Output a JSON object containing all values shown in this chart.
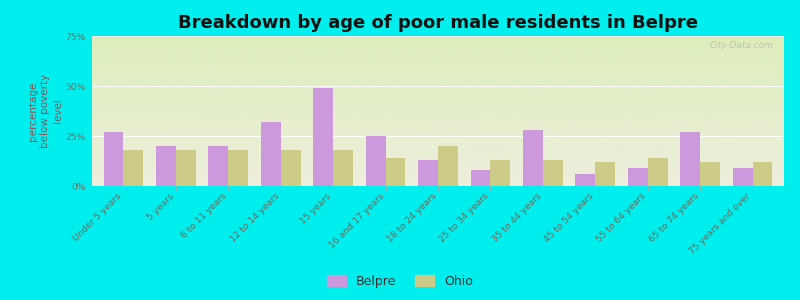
{
  "title": "Breakdown by age of poor male residents in Belpre",
  "ylabel": "percentage\nbelow poverty\nlevel",
  "categories": [
    "Under 5 years",
    "5 years",
    "6 to 11 years",
    "12 to 14 years",
    "15 years",
    "16 and 17 years",
    "18 to 24 years",
    "25 to 34 years",
    "35 to 44 years",
    "45 to 54 years",
    "55 to 64 years",
    "65 to 74 years",
    "75 years and over"
  ],
  "belpre_values": [
    27,
    20,
    20,
    32,
    49,
    25,
    13,
    8,
    28,
    6,
    9,
    27,
    9
  ],
  "ohio_values": [
    18,
    18,
    18,
    18,
    18,
    14,
    20,
    13,
    13,
    12,
    14,
    12,
    12
  ],
  "belpre_color": "#cc99dd",
  "ohio_color": "#cccc88",
  "background_color": "#00eeee",
  "plot_bg_top": "#ddeebb",
  "plot_bg_bottom": "#eeeedd",
  "ylim": [
    0,
    75
  ],
  "yticks": [
    0,
    25,
    50,
    75
  ],
  "ytick_labels": [
    "0%",
    "25%",
    "50%",
    "75%"
  ],
  "bar_width": 0.38,
  "title_fontsize": 13,
  "axis_label_fontsize": 7.5,
  "tick_fontsize": 6.5,
  "legend_fontsize": 9,
  "watermark": "City-Data.com"
}
